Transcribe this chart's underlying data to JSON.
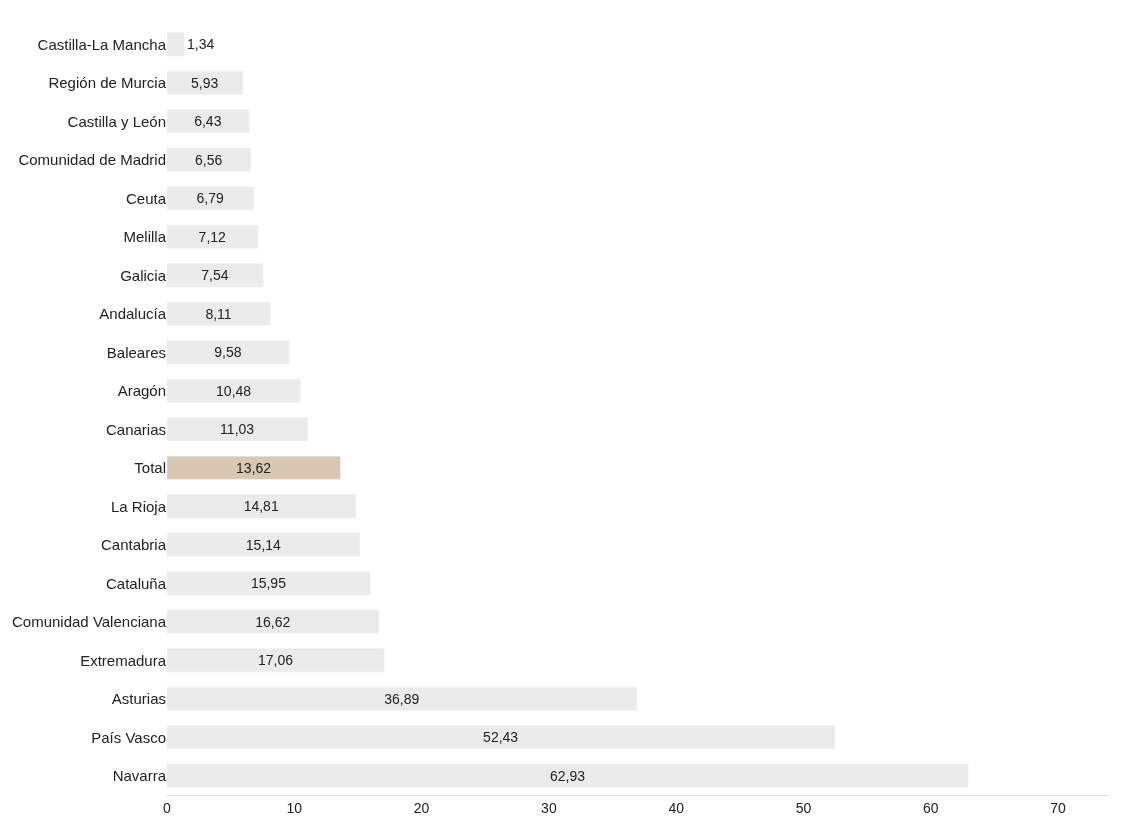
{
  "chart_data": {
    "type": "bar",
    "orientation": "horizontal",
    "categories": [
      "Castilla-La Mancha",
      "Región de Murcia",
      "Castilla y León",
      "Comunidad de Madrid",
      "Ceuta",
      "Melilla",
      "Galicia",
      "Andalucía",
      "Baleares",
      "Aragón",
      "Canarias",
      "Total",
      "La Rioja",
      "Cantabria",
      "Cataluña",
      "Comunidad Valenciana",
      "Extremadura",
      "Asturias",
      "País Vasco",
      "Navarra"
    ],
    "values": [
      1.34,
      5.93,
      6.43,
      6.56,
      6.79,
      7.12,
      7.54,
      8.11,
      9.58,
      10.48,
      11.03,
      13.62,
      14.81,
      15.14,
      15.95,
      16.62,
      17.06,
      36.89,
      52.43,
      62.93
    ],
    "value_labels": [
      "1,34",
      "5,93",
      "6,43",
      "6,56",
      "6,79",
      "7,12",
      "7,54",
      "8,11",
      "9,58",
      "10,48",
      "11,03",
      "13,62",
      "14,81",
      "15,14",
      "15,95",
      "16,62",
      "17,06",
      "36,89",
      "52,43",
      "62,93"
    ],
    "colors": [
      "#ebebeb",
      "#ebebeb",
      "#ebebeb",
      "#ebebeb",
      "#ebebeb",
      "#ebebeb",
      "#ebebeb",
      "#ebebeb",
      "#ebebeb",
      "#ebebeb",
      "#ebebeb",
      "#d8c8b2",
      "#ebebeb",
      "#ebebeb",
      "#ebebeb",
      "#ebebeb",
      "#ebebeb",
      "#ebebeb",
      "#ebebeb",
      "#ebebeb"
    ],
    "xlim": [
      0,
      74
    ],
    "xticks": [
      0,
      10,
      20,
      30,
      40,
      50,
      60,
      70
    ],
    "legend": false
  }
}
